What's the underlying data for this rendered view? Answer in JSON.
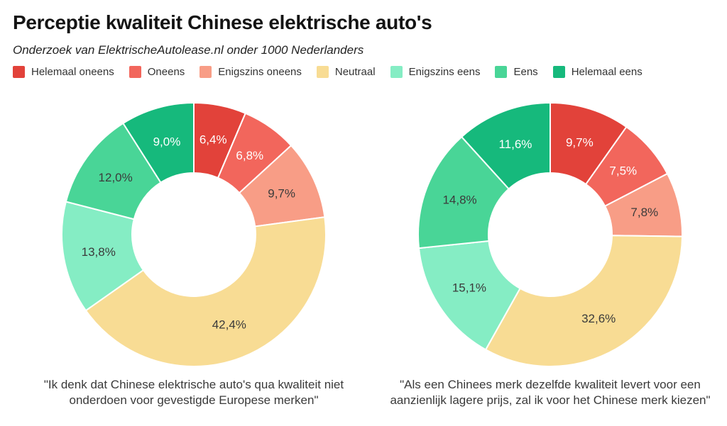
{
  "header": {
    "title": "Perceptie kwaliteit Chinese elektrische auto's",
    "subtitle": "Onderzoek van ElektrischeAutolease.nl onder 1000 Nederlanders"
  },
  "legend": {
    "items": [
      {
        "label": "Helemaal oneens",
        "color": "#E2423A"
      },
      {
        "label": "Oneens",
        "color": "#F2665C"
      },
      {
        "label": "Enigszins oneens",
        "color": "#F89D86"
      },
      {
        "label": "Neutraal",
        "color": "#F8DC94"
      },
      {
        "label": "Enigszins eens",
        "color": "#85EDC4"
      },
      {
        "label": "Eens",
        "color": "#49D597"
      },
      {
        "label": "Helemaal eens",
        "color": "#16B97C"
      }
    ]
  },
  "chart_data": [
    {
      "type": "pie",
      "variant": "donut",
      "title": "\"Ik denk dat Chinese elektrische auto's qua kwaliteit niet onderdoen voor gevestigde Europese merken\"",
      "categories": [
        "Helemaal oneens",
        "Oneens",
        "Enigszins oneens",
        "Neutraal",
        "Enigszins eens",
        "Eens",
        "Helemaal eens"
      ],
      "values": [
        6.4,
        6.8,
        9.7,
        42.4,
        13.8,
        12.0,
        9.0
      ],
      "value_labels": [
        "6,4%",
        "6,8%",
        "9,7%",
        "42,4%",
        "13,8%",
        "12,0%",
        "9,0%"
      ],
      "label_text_colors": [
        "#FFFFFF",
        "#FFFFFF",
        "#3B3B3B",
        "#3B3B3B",
        "#3B3B3B",
        "#3B3B3B",
        "#FFFFFF"
      ],
      "start_angle_deg": 0,
      "direction": "clockwise",
      "inner_radius_ratio": 0.47,
      "legend_position": "top"
    },
    {
      "type": "pie",
      "variant": "donut",
      "title": "\"Als een Chinees merk dezelfde kwaliteit levert voor een aanzienlijk lagere prijs, zal ik voor het Chinese merk kiezen\"",
      "categories": [
        "Helemaal oneens",
        "Oneens",
        "Enigszins oneens",
        "Neutraal",
        "Enigszins eens",
        "Eens",
        "Helemaal eens"
      ],
      "values": [
        9.7,
        7.5,
        7.8,
        32.6,
        15.1,
        14.8,
        11.6
      ],
      "value_labels": [
        "9,7%",
        "7,5%",
        "7,8%",
        "32,6%",
        "15,1%",
        "14,8%",
        "11,6%"
      ],
      "label_text_colors": [
        "#FFFFFF",
        "#FFFFFF",
        "#3B3B3B",
        "#3B3B3B",
        "#3B3B3B",
        "#3B3B3B",
        "#FFFFFF"
      ],
      "start_angle_deg": 0,
      "direction": "clockwise",
      "inner_radius_ratio": 0.47,
      "legend_position": "top"
    }
  ]
}
